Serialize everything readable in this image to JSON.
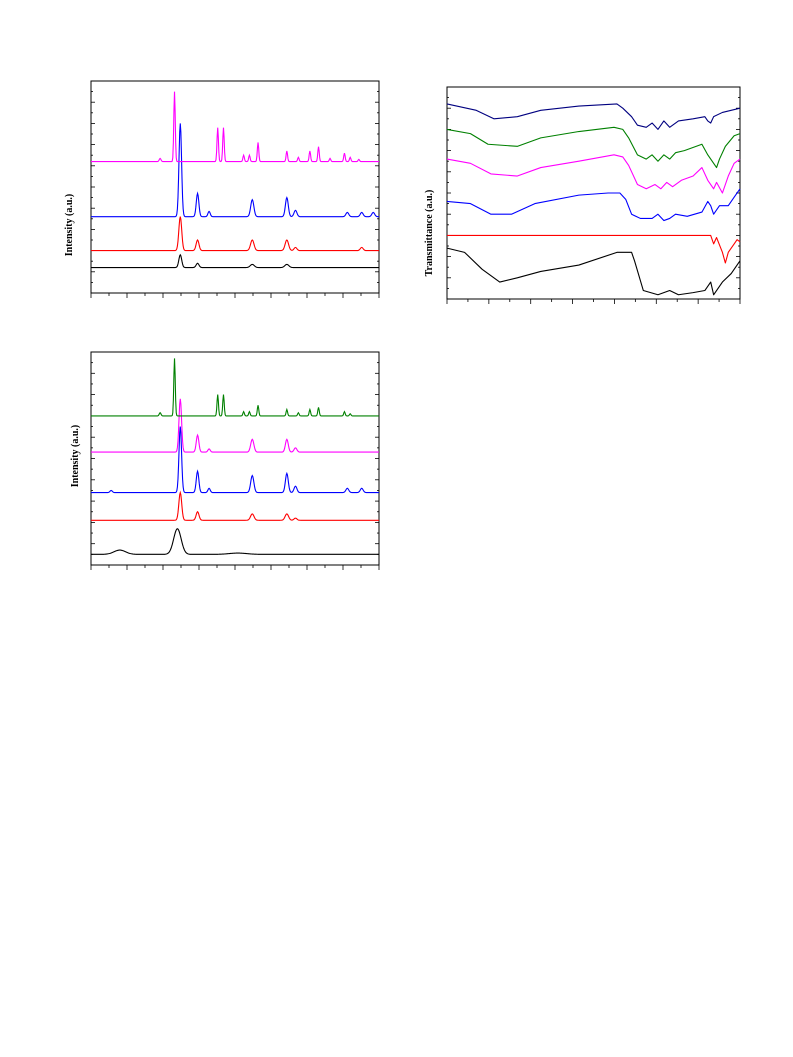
{
  "chart_data": [
    {
      "type": "line",
      "title": "",
      "xlabel": "",
      "ylabel": "Intensity (a.u.)",
      "legend": "none",
      "grid": false,
      "xlim": [
        0,
        100
      ],
      "ylim": [
        0,
        100
      ],
      "series": [
        {
          "color": "#000000",
          "baseline": 12,
          "peaks": [
            [
              31,
              6,
              0.5
            ],
            [
              37,
              2,
              0.5
            ],
            [
              56,
              1.5,
              0.7
            ],
            [
              68,
              1.5,
              0.7
            ]
          ]
        },
        {
          "color": "#ff0000",
          "baseline": 20,
          "peaks": [
            [
              31,
              16,
              0.5
            ],
            [
              37,
              5,
              0.5
            ],
            [
              56,
              5,
              0.6
            ],
            [
              68,
              5,
              0.6
            ],
            [
              71,
              1.5,
              0.5
            ],
            [
              94,
              1.5,
              0.5
            ]
          ]
        },
        {
          "color": "#0000ff",
          "baseline": 36,
          "peaks": [
            [
              31,
              44,
              0.45
            ],
            [
              37,
              11,
              0.45
            ],
            [
              41,
              2.5,
              0.4
            ],
            [
              56,
              8,
              0.55
            ],
            [
              68,
              9,
              0.5
            ],
            [
              71,
              3,
              0.5
            ],
            [
              89,
              2,
              0.5
            ],
            [
              94,
              2,
              0.5
            ],
            [
              98,
              2,
              0.5
            ]
          ]
        },
        {
          "color": "#ff00ff",
          "baseline": 62,
          "peaks": [
            [
              24,
              1.5,
              0.3
            ],
            [
              29,
              33,
              0.25
            ],
            [
              44,
              16,
              0.25
            ],
            [
              46,
              16,
              0.25
            ],
            [
              53,
              3,
              0.25
            ],
            [
              55,
              3,
              0.25
            ],
            [
              58,
              9,
              0.25
            ],
            [
              68,
              5,
              0.25
            ],
            [
              72,
              2,
              0.25
            ],
            [
              76,
              5,
              0.25
            ],
            [
              79,
              7,
              0.25
            ],
            [
              83,
              1.5,
              0.25
            ],
            [
              88,
              4,
              0.25
            ],
            [
              90,
              2,
              0.25
            ],
            [
              93,
              1,
              0.25
            ]
          ]
        }
      ]
    },
    {
      "type": "line",
      "title": "",
      "xlabel": "",
      "ylabel": "Transmittance (a.u.)",
      "legend": "none",
      "grid": false,
      "xlim": [
        0,
        100
      ],
      "ylim": [
        0,
        100
      ],
      "series": [
        {
          "color": "#000000",
          "points": [
            [
              0,
              24
            ],
            [
              6,
              22
            ],
            [
              12,
              14
            ],
            [
              18,
              8
            ],
            [
              24,
              10
            ],
            [
              32,
              13
            ],
            [
              45,
              16
            ],
            [
              58,
              22
            ],
            [
              63,
              22
            ],
            [
              64,
              18
            ],
            [
              67,
              4
            ],
            [
              72,
              2
            ],
            [
              76,
              4
            ],
            [
              79,
              2
            ],
            [
              84,
              3
            ],
            [
              88,
              4
            ],
            [
              90,
              8
            ],
            [
              91,
              2
            ],
            [
              94,
              8
            ],
            [
              97,
              12
            ],
            [
              100,
              18
            ]
          ]
        },
        {
          "color": "#ff0000",
          "points": [
            [
              0,
              30
            ],
            [
              60,
              30
            ],
            [
              88,
              30
            ],
            [
              90,
              30
            ],
            [
              91,
              26
            ],
            [
              92,
              29
            ],
            [
              94,
              22
            ],
            [
              95,
              17
            ],
            [
              96,
              22
            ],
            [
              98,
              26
            ],
            [
              99,
              28
            ],
            [
              100,
              27
            ]
          ]
        },
        {
          "color": "#0000ff",
          "points": [
            [
              0,
              46
            ],
            [
              8,
              45
            ],
            [
              15,
              40
            ],
            [
              22,
              40
            ],
            [
              30,
              45
            ],
            [
              45,
              49
            ],
            [
              55,
              50
            ],
            [
              59,
              50
            ],
            [
              61,
              47
            ],
            [
              63,
              40
            ],
            [
              66,
              38
            ],
            [
              70,
              38
            ],
            [
              72,
              40
            ],
            [
              74,
              37
            ],
            [
              76,
              38
            ],
            [
              78,
              40
            ],
            [
              82,
              39
            ],
            [
              87,
              41
            ],
            [
              89,
              46
            ],
            [
              90,
              44
            ],
            [
              91,
              40
            ],
            [
              93,
              44
            ],
            [
              96,
              44
            ],
            [
              98,
              48
            ],
            [
              100,
              52
            ]
          ]
        },
        {
          "color": "#ff00ff",
          "points": [
            [
              0,
              66
            ],
            [
              8,
              64
            ],
            [
              15,
              59
            ],
            [
              24,
              58
            ],
            [
              32,
              62
            ],
            [
              45,
              65
            ],
            [
              57,
              68
            ],
            [
              60,
              67
            ],
            [
              62,
              63
            ],
            [
              65,
              54
            ],
            [
              68,
              52
            ],
            [
              71,
              54
            ],
            [
              73,
              52
            ],
            [
              75,
              55
            ],
            [
              77,
              53
            ],
            [
              80,
              56
            ],
            [
              84,
              58
            ],
            [
              87,
              62
            ],
            [
              89,
              56
            ],
            [
              91,
              52
            ],
            [
              92,
              55
            ],
            [
              94,
              50
            ],
            [
              96,
              58
            ],
            [
              98,
              64
            ],
            [
              100,
              66
            ]
          ]
        },
        {
          "color": "#008000",
          "points": [
            [
              0,
              80
            ],
            [
              8,
              78
            ],
            [
              14,
              73
            ],
            [
              24,
              72
            ],
            [
              32,
              76
            ],
            [
              45,
              79
            ],
            [
              57,
              81
            ],
            [
              60,
              80
            ],
            [
              62,
              76
            ],
            [
              65,
              68
            ],
            [
              68,
              66
            ],
            [
              70,
              68
            ],
            [
              72,
              65
            ],
            [
              74,
              68
            ],
            [
              76,
              66
            ],
            [
              78,
              69
            ],
            [
              81,
              70
            ],
            [
              85,
              72
            ],
            [
              87,
              73
            ],
            [
              89,
              68
            ],
            [
              91,
              64
            ],
            [
              92,
              62
            ],
            [
              93,
              66
            ],
            [
              95,
              72
            ],
            [
              98,
              77
            ],
            [
              100,
              78
            ]
          ]
        },
        {
          "color": "#000080",
          "points": [
            [
              0,
              92
            ],
            [
              10,
              89
            ],
            [
              16,
              85
            ],
            [
              24,
              86
            ],
            [
              32,
              89
            ],
            [
              45,
              91
            ],
            [
              58,
              92
            ],
            [
              60,
              90
            ],
            [
              63,
              86
            ],
            [
              65,
              82
            ],
            [
              68,
              81
            ],
            [
              70,
              83
            ],
            [
              72,
              80
            ],
            [
              74,
              84
            ],
            [
              76,
              81
            ],
            [
              79,
              84
            ],
            [
              84,
              85
            ],
            [
              88,
              86
            ],
            [
              89,
              84
            ],
            [
              90,
              83
            ],
            [
              91,
              86
            ],
            [
              94,
              88
            ],
            [
              97,
              89
            ],
            [
              100,
              90
            ]
          ]
        }
      ]
    },
    {
      "type": "line",
      "title": "",
      "xlabel": "",
      "ylabel": "Intensity (a.u.)",
      "legend": "none",
      "grid": false,
      "xlim": [
        0,
        100
      ],
      "ylim": [
        0,
        100
      ],
      "series": [
        {
          "color": "#000000",
          "baseline": 5,
          "peaks": [
            [
              10,
              2,
              2
            ],
            [
              30,
              12,
              1.3
            ],
            [
              51,
              0.6,
              3
            ]
          ]
        },
        {
          "color": "#ff0000",
          "baseline": 21,
          "peaks": [
            [
              31,
              13,
              0.5
            ],
            [
              37,
              4,
              0.5
            ],
            [
              56,
              3,
              0.6
            ],
            [
              68,
              3,
              0.6
            ],
            [
              71,
              1,
              0.5
            ]
          ]
        },
        {
          "color": "#0000ff",
          "baseline": 34,
          "peaks": [
            [
              7,
              1,
              0.4
            ],
            [
              31,
              31,
              0.45
            ],
            [
              37,
              10,
              0.45
            ],
            [
              41,
              2,
              0.4
            ],
            [
              56,
              8,
              0.55
            ],
            [
              68,
              9,
              0.5
            ],
            [
              71,
              3,
              0.5
            ],
            [
              89,
              2,
              0.5
            ],
            [
              94,
              2,
              0.5
            ]
          ]
        },
        {
          "color": "#ff00ff",
          "baseline": 53,
          "peaks": [
            [
              31,
              25,
              0.45
            ],
            [
              37,
              8,
              0.45
            ],
            [
              41,
              1.5,
              0.4
            ],
            [
              56,
              6,
              0.55
            ],
            [
              68,
              6,
              0.5
            ],
            [
              71,
              2,
              0.5
            ]
          ]
        },
        {
          "color": "#008000",
          "baseline": 70,
          "peaks": [
            [
              24,
              1.5,
              0.3
            ],
            [
              29,
              27,
              0.25
            ],
            [
              44,
              10,
              0.25
            ],
            [
              46,
              10,
              0.25
            ],
            [
              53,
              2,
              0.25
            ],
            [
              55,
              2,
              0.25
            ],
            [
              58,
              5,
              0.25
            ],
            [
              68,
              3,
              0.25
            ],
            [
              72,
              1.5,
              0.25
            ],
            [
              76,
              3,
              0.25
            ],
            [
              79,
              4,
              0.25
            ],
            [
              88,
              2,
              0.25
            ],
            [
              90,
              1,
              0.25
            ]
          ]
        }
      ]
    }
  ]
}
